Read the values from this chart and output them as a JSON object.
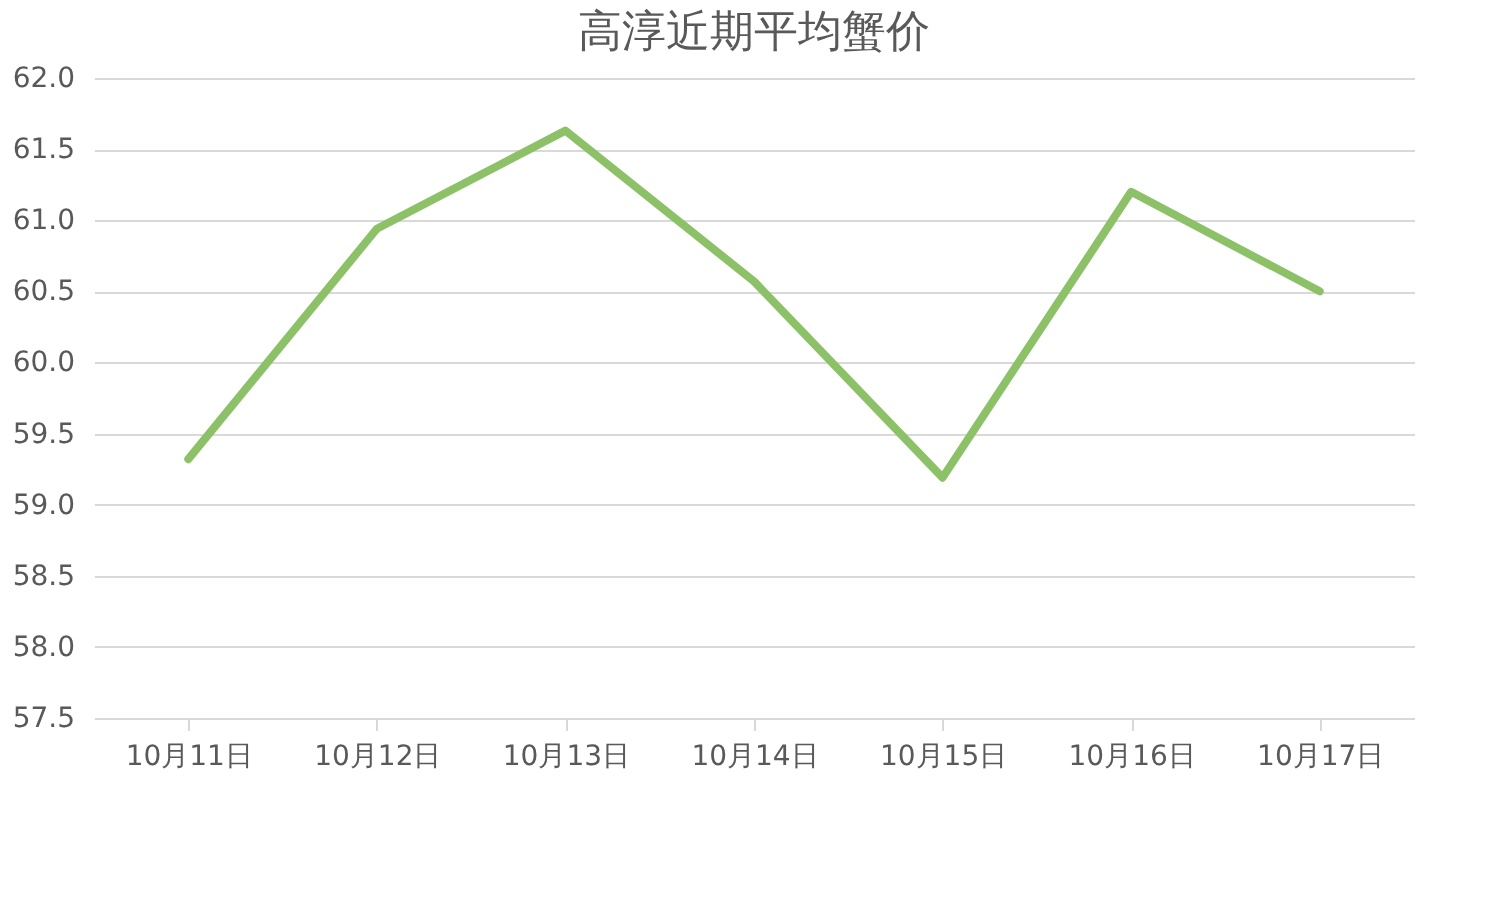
{
  "chart_data": {
    "type": "line",
    "title": "高淳近期平均蟹价",
    "categories": [
      "10月11日",
      "10月12日",
      "10月13日",
      "10月14日",
      "10月15日",
      "10月16日",
      "10月17日"
    ],
    "series": [
      {
        "color": "#8cc168",
        "values": [
          59.32,
          60.94,
          61.63,
          60.57,
          59.19,
          61.2,
          60.5
        ]
      }
    ],
    "ylim": [
      57.5,
      62.0
    ],
    "yticks": [
      {
        "value": 57.5,
        "label": "57.5"
      },
      {
        "value": 58,
        "label": "58.0"
      },
      {
        "value": 58.5,
        "label": "58.5"
      },
      {
        "value": 59,
        "label": "59.0"
      },
      {
        "value": 59.5,
        "label": "59.5"
      },
      {
        "value": 60,
        "label": "60.0"
      },
      {
        "value": 60.5,
        "label": "60.5"
      },
      {
        "value": 61,
        "label": "61.0"
      },
      {
        "value": 61.5,
        "label": "61.5"
      },
      {
        "value": 62,
        "label": "62.0"
      }
    ],
    "grid": "y",
    "marker": "none",
    "line_style": "solid"
  }
}
